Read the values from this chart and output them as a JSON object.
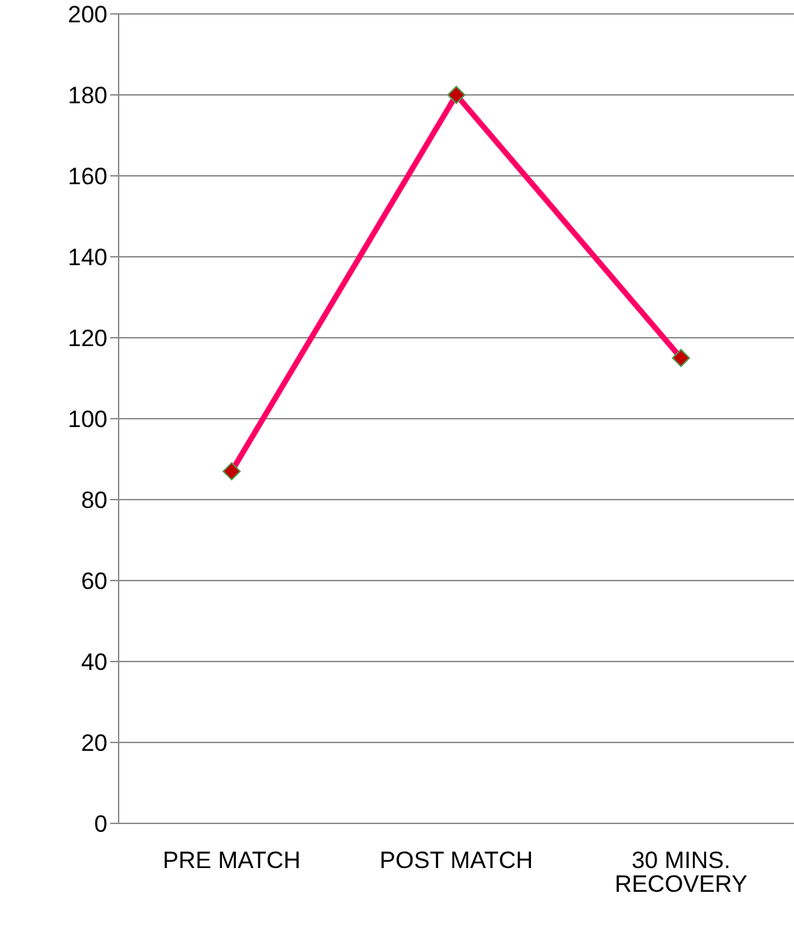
{
  "chart_data": {
    "type": "line",
    "categories": [
      "PRE MATCH",
      "POST MATCH",
      "30 MINS. RECOVERY"
    ],
    "series": [
      {
        "color": "#ff0066",
        "values": [
          87,
          180,
          115
        ]
      }
    ],
    "ylim": [
      0,
      200
    ],
    "yticks": [
      0,
      20,
      40,
      60,
      80,
      100,
      120,
      140,
      160,
      180,
      200
    ],
    "grid": "y",
    "marker": "diamond",
    "line_style": "solid"
  }
}
